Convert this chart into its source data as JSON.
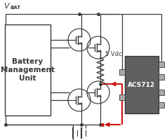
{
  "bg": "#ffffff",
  "dk": "#383838",
  "acs_fill": "#606060",
  "red": "#cc1111",
  "label_5vdc": "5 Vdc",
  "label_acs": "ACS712",
  "bmu_line1": "Battery",
  "bmu_line2": "Management",
  "bmu_line3": "Unit",
  "vbat_v": "V",
  "vbat_sub": "BAT",
  "fig_w": 2.38,
  "fig_h": 2.0,
  "dpi": 100
}
